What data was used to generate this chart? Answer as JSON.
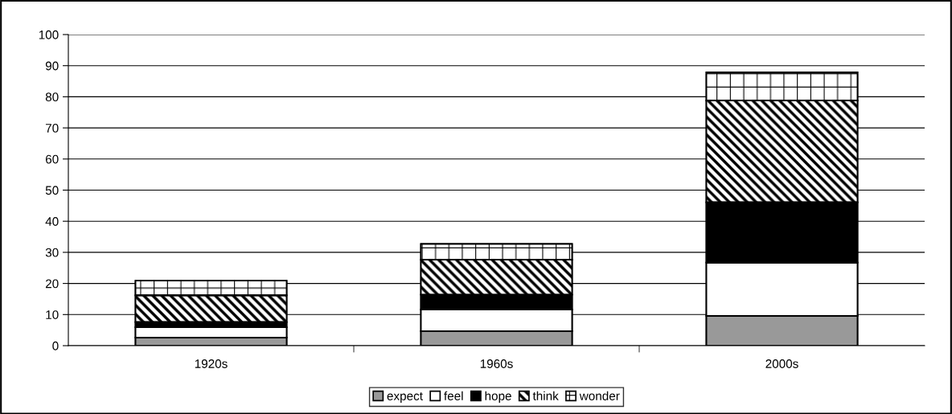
{
  "chart_data": {
    "type": "bar",
    "stacked": true,
    "categories": [
      "1920s",
      "1960s",
      "2000s"
    ],
    "series": [
      {
        "name": "expect",
        "color": "#999999",
        "values": [
          2.6,
          4.7,
          9.6
        ]
      },
      {
        "name": "feel",
        "color": "#ffffff",
        "values": [
          3.3,
          6.9,
          17.1
        ]
      },
      {
        "name": "hope",
        "color": "#000000",
        "values": [
          1.7,
          4.8,
          19.4
        ]
      },
      {
        "name": "think",
        "color": "#000000",
        "values": [
          8.6,
          11.2,
          32.7
        ]
      },
      {
        "name": "wonder",
        "color": "#000000",
        "values": [
          4.7,
          5.1,
          9.1
        ]
      }
    ],
    "ylim": [
      0,
      100
    ],
    "yticks": [
      0,
      10,
      20,
      30,
      40,
      50,
      60,
      70,
      80,
      90,
      100
    ],
    "grid": "y",
    "legend": "bottom"
  }
}
